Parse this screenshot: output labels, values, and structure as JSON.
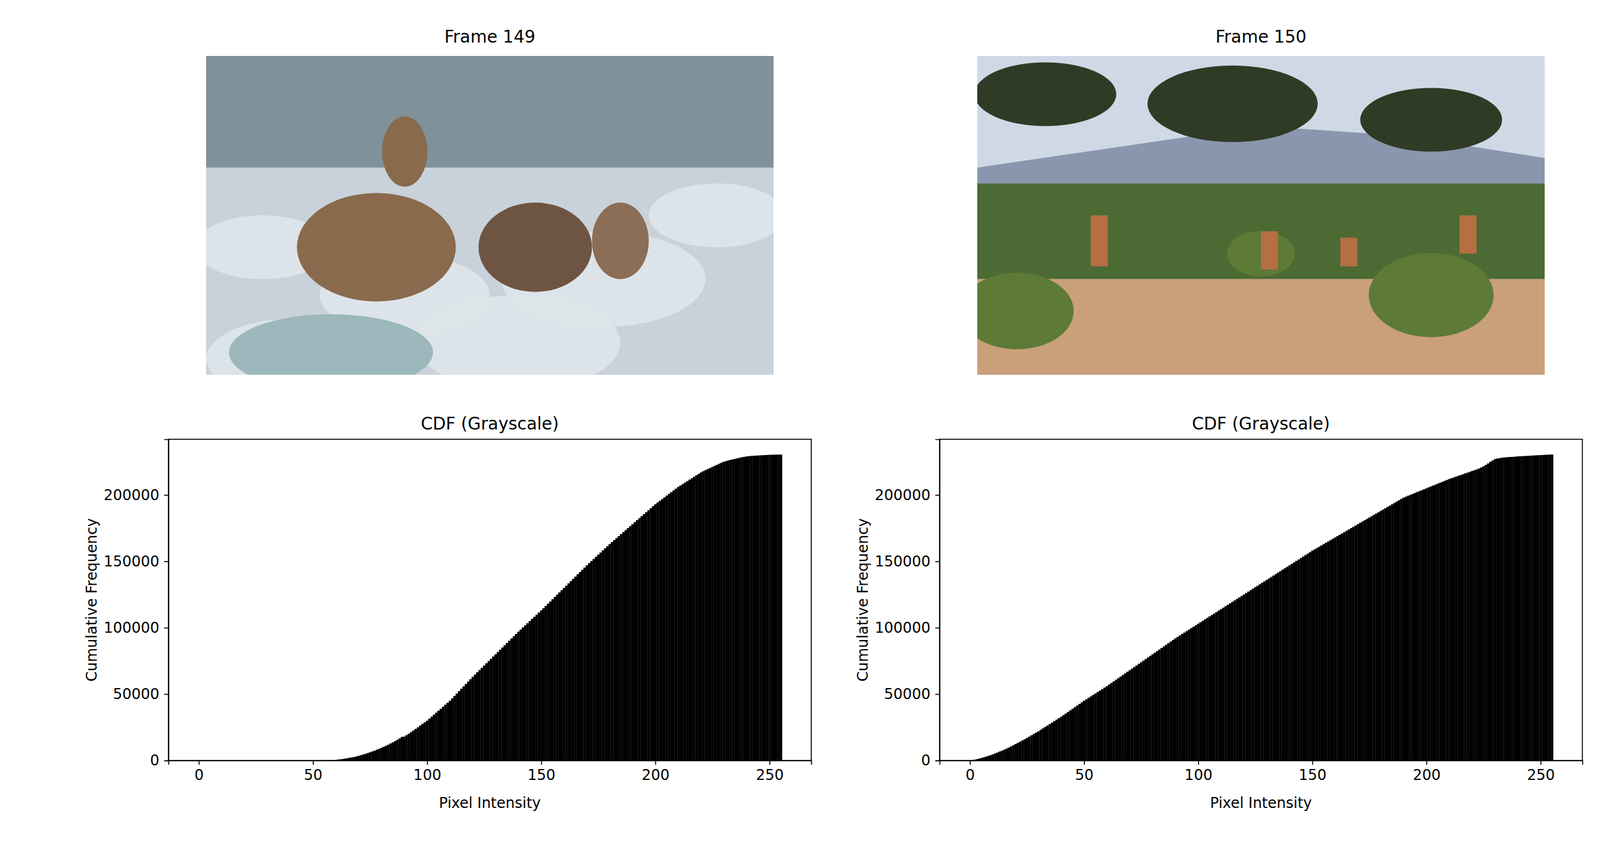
{
  "images": [
    {
      "title": "Frame 149"
    },
    {
      "title": "Frame 150"
    }
  ],
  "chart_data": [
    {
      "type": "bar",
      "title": "CDF (Grayscale)",
      "x_label": "Pixel Intensity",
      "y_label": "Cumulative Frequency",
      "color": "#000000",
      "xlim": [
        -13.3,
        268.3
      ],
      "xticks": [
        0,
        50,
        100,
        150,
        200,
        250
      ],
      "ylim": [
        0,
        241920
      ],
      "yticks": [
        0,
        50000,
        100000,
        150000,
        200000
      ],
      "x": [
        0,
        1,
        2,
        3,
        4,
        5,
        6,
        7,
        8,
        9,
        10,
        11,
        12,
        13,
        14,
        15,
        16,
        17,
        18,
        19,
        20,
        21,
        22,
        23,
        24,
        25,
        26,
        27,
        28,
        29,
        30,
        31,
        32,
        33,
        34,
        35,
        36,
        37,
        38,
        39,
        40,
        41,
        42,
        43,
        44,
        45,
        46,
        47,
        48,
        49,
        50,
        51,
        52,
        53,
        54,
        55,
        56,
        57,
        58,
        59,
        60,
        61,
        62,
        63,
        64,
        65,
        66,
        67,
        68,
        69,
        70,
        71,
        72,
        73,
        74,
        75,
        76,
        77,
        78,
        79,
        80,
        81,
        82,
        83,
        84,
        85,
        86,
        87,
        88,
        89,
        90,
        91,
        92,
        93,
        94,
        95,
        96,
        97,
        98,
        99,
        100,
        101,
        102,
        103,
        104,
        105,
        106,
        107,
        108,
        109,
        110,
        111,
        112,
        113,
        114,
        115,
        116,
        117,
        118,
        119,
        120,
        121,
        122,
        123,
        124,
        125,
        126,
        127,
        128,
        129,
        130,
        131,
        132,
        133,
        134,
        135,
        136,
        137,
        138,
        139,
        140,
        141,
        142,
        143,
        144,
        145,
        146,
        147,
        148,
        149,
        150,
        151,
        152,
        153,
        154,
        155,
        156,
        157,
        158,
        159,
        160,
        161,
        162,
        163,
        164,
        165,
        166,
        167,
        168,
        169,
        170,
        171,
        172,
        173,
        174,
        175,
        176,
        177,
        178,
        179,
        180,
        181,
        182,
        183,
        184,
        185,
        186,
        187,
        188,
        189,
        190,
        191,
        192,
        193,
        194,
        195,
        196,
        197,
        198,
        199,
        200,
        201,
        202,
        203,
        204,
        205,
        206,
        207,
        208,
        209,
        210,
        211,
        212,
        213,
        214,
        215,
        216,
        217,
        218,
        219,
        220,
        221,
        222,
        223,
        224,
        225,
        226,
        227,
        228,
        229,
        230,
        231,
        232,
        233,
        234,
        235,
        236,
        237,
        238,
        239,
        240,
        241,
        242,
        243,
        244,
        245,
        246,
        247,
        248,
        249,
        250,
        251,
        252,
        253,
        254,
        255
      ],
      "values": [
        0,
        0,
        0,
        0,
        0,
        0,
        0,
        0,
        0,
        0,
        0,
        0,
        0,
        0,
        0,
        0,
        0,
        0,
        0,
        0,
        0,
        0,
        0,
        0,
        0,
        0,
        0,
        0,
        0,
        0,
        0,
        0,
        0,
        0,
        0,
        0,
        0,
        0,
        0,
        0,
        0,
        0,
        0,
        0,
        0,
        0,
        0,
        0,
        0,
        0,
        0,
        0,
        0,
        0,
        0,
        50,
        100,
        150,
        250,
        350,
        500,
        700,
        900,
        1100,
        1400,
        1700,
        2000,
        2300,
        2600,
        3000,
        3500,
        4000,
        4500,
        5000,
        5600,
        6200,
        6800,
        7400,
        8100,
        8800,
        9500,
        10300,
        11100,
        11900,
        12800,
        13700,
        14600,
        15600,
        16700,
        17800,
        18000,
        19100,
        20200,
        21400,
        22600,
        23800,
        25000,
        26300,
        27600,
        28800,
        30000,
        31500,
        33000,
        34500,
        36000,
        37500,
        39000,
        40500,
        42000,
        43500,
        45000,
        46800,
        48600,
        50400,
        52200,
        54000,
        55800,
        57600,
        59400,
        61200,
        63000,
        64700,
        66400,
        68100,
        69800,
        71500,
        73200,
        74900,
        76600,
        78300,
        80000,
        81700,
        83400,
        85100,
        86800,
        88500,
        90200,
        91900,
        93600,
        95300,
        97000,
        98600,
        100200,
        101800,
        103400,
        105000,
        106600,
        108200,
        109800,
        111400,
        113000,
        114700,
        116400,
        118100,
        119800,
        121500,
        123200,
        124900,
        126600,
        128300,
        130000,
        131700,
        133400,
        135100,
        136800,
        138500,
        140200,
        141900,
        143600,
        145300,
        147000,
        148600,
        150200,
        151800,
        153400,
        155000,
        156600,
        158200,
        159800,
        161400,
        163000,
        164500,
        166000,
        167500,
        169000,
        170500,
        172000,
        173500,
        175000,
        176500,
        178000,
        179500,
        181000,
        182500,
        184000,
        185500,
        187000,
        188500,
        190000,
        191500,
        193000,
        194300,
        195600,
        196900,
        198200,
        199500,
        200800,
        202100,
        203400,
        204700,
        206000,
        207100,
        208200,
        209300,
        210400,
        211500,
        212600,
        213700,
        214800,
        215900,
        217000,
        217900,
        218700,
        219500,
        220300,
        221100,
        221900,
        222700,
        223500,
        224300,
        225000,
        225500,
        226000,
        226400,
        226800,
        227200,
        227600,
        228000,
        228400,
        228700,
        229000,
        229200,
        229400,
        229500,
        229600,
        229700,
        229800,
        229900,
        230000,
        230100,
        230200,
        230250,
        230300,
        230350,
        230380,
        230400
      ]
    },
    {
      "type": "bar",
      "title": "CDF (Grayscale)",
      "x_label": "Pixel Intensity",
      "y_label": "Cumulative Frequency",
      "color": "#000000",
      "xlim": [
        -13.3,
        268.3
      ],
      "xticks": [
        0,
        50,
        100,
        150,
        200,
        250
      ],
      "ylim": [
        0,
        241920
      ],
      "yticks": [
        0,
        50000,
        100000,
        150000,
        200000
      ],
      "x": [
        0,
        1,
        2,
        3,
        4,
        5,
        6,
        7,
        8,
        9,
        10,
        11,
        12,
        13,
        14,
        15,
        16,
        17,
        18,
        19,
        20,
        21,
        22,
        23,
        24,
        25,
        26,
        27,
        28,
        29,
        30,
        31,
        32,
        33,
        34,
        35,
        36,
        37,
        38,
        39,
        40,
        41,
        42,
        43,
        44,
        45,
        46,
        47,
        48,
        49,
        50,
        51,
        52,
        53,
        54,
        55,
        56,
        57,
        58,
        59,
        60,
        61,
        62,
        63,
        64,
        65,
        66,
        67,
        68,
        69,
        70,
        71,
        72,
        73,
        74,
        75,
        76,
        77,
        78,
        79,
        80,
        81,
        82,
        83,
        84,
        85,
        86,
        87,
        88,
        89,
        90,
        91,
        92,
        93,
        94,
        95,
        96,
        97,
        98,
        99,
        100,
        101,
        102,
        103,
        104,
        105,
        106,
        107,
        108,
        109,
        110,
        111,
        112,
        113,
        114,
        115,
        116,
        117,
        118,
        119,
        120,
        121,
        122,
        123,
        124,
        125,
        126,
        127,
        128,
        129,
        130,
        131,
        132,
        133,
        134,
        135,
        136,
        137,
        138,
        139,
        140,
        141,
        142,
        143,
        144,
        145,
        146,
        147,
        148,
        149,
        150,
        151,
        152,
        153,
        154,
        155,
        156,
        157,
        158,
        159,
        160,
        161,
        162,
        163,
        164,
        165,
        166,
        167,
        168,
        169,
        170,
        171,
        172,
        173,
        174,
        175,
        176,
        177,
        178,
        179,
        180,
        181,
        182,
        183,
        184,
        185,
        186,
        187,
        188,
        189,
        190,
        191,
        192,
        193,
        194,
        195,
        196,
        197,
        198,
        199,
        200,
        201,
        202,
        203,
        204,
        205,
        206,
        207,
        208,
        209,
        210,
        211,
        212,
        213,
        214,
        215,
        216,
        217,
        218,
        219,
        220,
        221,
        222,
        223,
        224,
        225,
        226,
        227,
        228,
        229,
        230,
        231,
        232,
        233,
        234,
        235,
        236,
        237,
        238,
        239,
        240,
        241,
        242,
        243,
        244,
        245,
        246,
        247,
        248,
        249,
        250,
        251,
        252,
        253,
        254,
        255
      ],
      "values": [
        100,
        300,
        600,
        1000,
        1400,
        1900,
        2400,
        2900,
        3400,
        4000,
        4600,
        5300,
        6000,
        6700,
        7400,
        8100,
        8900,
        9700,
        10600,
        11500,
        12400,
        13300,
        14200,
        15100,
        16000,
        17000,
        18000,
        19000,
        20000,
        21000,
        22000,
        23100,
        24200,
        25300,
        26400,
        27500,
        28600,
        29700,
        30800,
        31900,
        33000,
        34200,
        35400,
        36600,
        37800,
        39000,
        40200,
        41400,
        42600,
        43800,
        45000,
        46100,
        47200,
        48300,
        49400,
        50500,
        51600,
        52700,
        53800,
        54900,
        56000,
        57200,
        58400,
        59600,
        60800,
        62000,
        63200,
        64400,
        65600,
        66800,
        68000,
        69200,
        70400,
        71600,
        72800,
        74000,
        75200,
        76400,
        77600,
        78800,
        80000,
        81200,
        82400,
        83600,
        84800,
        86000,
        87200,
        88400,
        89600,
        90800,
        92000,
        93100,
        94200,
        95300,
        96400,
        97500,
        98600,
        99700,
        100800,
        101900,
        103000,
        104100,
        105200,
        106300,
        107400,
        108500,
        109600,
        110700,
        111800,
        112900,
        114000,
        115100,
        116200,
        117300,
        118400,
        119500,
        120600,
        121700,
        122800,
        123900,
        125000,
        126100,
        127200,
        128300,
        129400,
        130500,
        131600,
        132700,
        133800,
        134900,
        136000,
        137100,
        138200,
        139300,
        140400,
        141500,
        142600,
        143700,
        144800,
        145900,
        147000,
        148100,
        149200,
        150300,
        151400,
        152500,
        153600,
        154700,
        155800,
        156900,
        158000,
        159000,
        160000,
        161000,
        162000,
        163000,
        164000,
        165000,
        166000,
        167000,
        168000,
        169000,
        170000,
        171000,
        172000,
        173000,
        174000,
        175000,
        176000,
        177000,
        178000,
        179000,
        180000,
        181000,
        182000,
        183000,
        184000,
        185000,
        186000,
        187000,
        188000,
        189000,
        190000,
        191000,
        192000,
        193000,
        194000,
        195000,
        196000,
        197000,
        198000,
        198700,
        199400,
        200100,
        200800,
        201500,
        202200,
        202900,
        203600,
        204300,
        205000,
        205700,
        206400,
        207100,
        207800,
        208500,
        209200,
        209900,
        210600,
        211300,
        212000,
        212600,
        213200,
        213800,
        214400,
        215000,
        215600,
        216200,
        216800,
        217400,
        218000,
        218600,
        219200,
        219900,
        220700,
        221600,
        222600,
        223700,
        224900,
        226000,
        227000,
        227400,
        227700,
        228000,
        228200,
        228400,
        228500,
        228600,
        228700,
        228800,
        229000,
        229100,
        229200,
        229300,
        229400,
        229500,
        229600,
        229700,
        229800,
        229900,
        230000,
        230100,
        230200,
        230300,
        230350,
        230400
      ]
    }
  ]
}
